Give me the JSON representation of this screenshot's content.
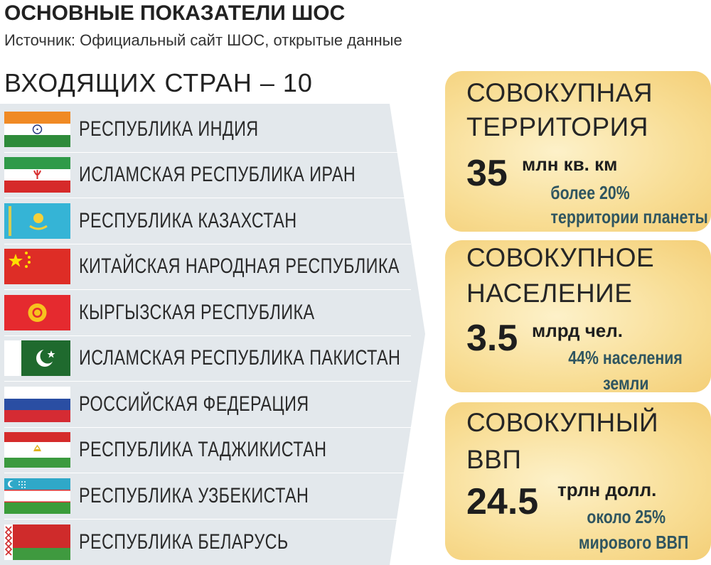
{
  "header": {
    "title": "ОСНОВНЫЕ ПОКАЗАТЕЛИ ШОС",
    "source": "Источник: Официальный сайт ШОС, открытые данные",
    "members_heading": "ВХОДЯЩИХ СТРАН – 10"
  },
  "countries": [
    {
      "name": "РЕСПУБЛИКА ИНДИЯ",
      "flag": "india-flag"
    },
    {
      "name": "ИСЛАМСКАЯ РЕСПУБЛИКА ИРАН",
      "flag": "iran-flag"
    },
    {
      "name": "РЕСПУБЛИКА КАЗАХСТАН",
      "flag": "kazakhstan-flag"
    },
    {
      "name": "КИТАЙСКАЯ НАРОДНАЯ РЕСПУБЛИКА",
      "flag": "china-flag"
    },
    {
      "name": "КЫРГЫЗСКАЯ РЕСПУБЛИКА",
      "flag": "kyrgyzstan-flag"
    },
    {
      "name": "ИСЛАМСКАЯ РЕСПУБЛИКА ПАКИСТАН",
      "flag": "pakistan-flag"
    },
    {
      "name": "РОССИЙСКАЯ ФЕДЕРАЦИЯ",
      "flag": "russia-flag"
    },
    {
      "name": "РЕСПУБЛИКА ТАДЖИКИСТАН",
      "flag": "tajikistan-flag"
    },
    {
      "name": "РЕСПУБЛИКА УЗБЕКИСТАН",
      "flag": "uzbekistan-flag"
    },
    {
      "name": "РЕСПУБЛИКА БЕЛАРУСЬ",
      "flag": "belarus-flag"
    }
  ],
  "stats": {
    "territory": {
      "line1": "СОВОКУПНАЯ",
      "line2": "ТЕРРИТОРИЯ",
      "value": "35",
      "unit": "млн кв. км",
      "note1": "более 20%",
      "note2": "территории планеты"
    },
    "population": {
      "line1": "СОВОКУПНОЕ",
      "line2": "НАСЕЛЕНИЕ",
      "value": "3.5",
      "unit": "млрд чел.",
      "note1": "44% населения",
      "note2": "земли"
    },
    "gdp": {
      "line1": "СОВОКУПНЫЙ",
      "line2": "ВВП",
      "value": "24.5",
      "unit": "трлн долл.",
      "note1": "около 25%",
      "note2": "мирового ВВП"
    }
  },
  "colors": {
    "list_background": "#e3e8ec",
    "card_center": "#fdf1c9",
    "card_edge": "#f4cf78",
    "note_text": "#2f5560"
  }
}
